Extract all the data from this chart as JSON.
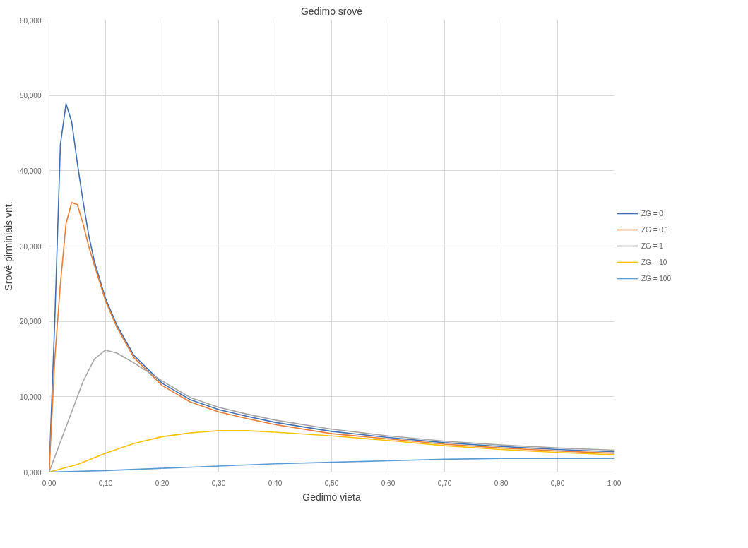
{
  "chart_data": {
    "type": "line",
    "title": "Gedimo srovė",
    "xlabel": "Gedimo vieta",
    "ylabel": "Srovė pirminiais vnt.",
    "xlim": [
      0,
      1
    ],
    "ylim": [
      0,
      60
    ],
    "xticks": [
      {
        "value": 0,
        "label": "0,00"
      },
      {
        "value": 0.1,
        "label": "0,10"
      },
      {
        "value": 0.2,
        "label": "0,20"
      },
      {
        "value": 0.3,
        "label": "0,30"
      },
      {
        "value": 0.4,
        "label": "0,40"
      },
      {
        "value": 0.5,
        "label": "0,50"
      },
      {
        "value": 0.6,
        "label": "0,60"
      },
      {
        "value": 0.7,
        "label": "0,70"
      },
      {
        "value": 0.8,
        "label": "0,80"
      },
      {
        "value": 0.9,
        "label": "0,90"
      },
      {
        "value": 1,
        "label": "1,00"
      }
    ],
    "yticks": [
      {
        "value": 0,
        "label": "0,000"
      },
      {
        "value": 10,
        "label": "10,000"
      },
      {
        "value": 20,
        "label": "20,000"
      },
      {
        "value": 30,
        "label": "30,000"
      },
      {
        "value": 40,
        "label": "40,000"
      },
      {
        "value": 50,
        "label": "50,000"
      },
      {
        "value": 60,
        "label": "60,000"
      }
    ],
    "grid": true,
    "legend": "right",
    "marker": "none",
    "line_style": "solid",
    "series": [
      {
        "name": "ZG = 0",
        "color": "#3f6fb5",
        "x": [
          0,
          0.01,
          0.02,
          0.03,
          0.04,
          0.05,
          0.06,
          0.07,
          0.08,
          0.1,
          0.12,
          0.15,
          0.2,
          0.25,
          0.3,
          0.35,
          0.4,
          0.5,
          0.6,
          0.7,
          0.8,
          0.9,
          1.0
        ],
        "values": [
          0,
          20,
          43.5,
          48.9,
          46.5,
          41,
          36,
          31.5,
          28,
          23,
          19.5,
          15.5,
          11.8,
          9.6,
          8.3,
          7.4,
          6.6,
          5.4,
          4.6,
          3.9,
          3.4,
          3.0,
          2.7
        ]
      },
      {
        "name": "ZG = 0.1",
        "color": "#ed7d31",
        "x": [
          0,
          0.01,
          0.02,
          0.03,
          0.04,
          0.05,
          0.06,
          0.07,
          0.08,
          0.1,
          0.12,
          0.15,
          0.2,
          0.25,
          0.3,
          0.35,
          0.4,
          0.5,
          0.6,
          0.7,
          0.8,
          0.9,
          1.0
        ],
        "values": [
          0,
          15,
          25,
          33,
          35.8,
          35.5,
          33,
          30,
          27.5,
          22.7,
          19.2,
          15.2,
          11.5,
          9.3,
          8.0,
          7.1,
          6.3,
          5.1,
          4.4,
          3.7,
          3.2,
          2.8,
          2.5
        ]
      },
      {
        "name": "ZG = 1",
        "color": "#a5a5a5",
        "x": [
          0,
          0.02,
          0.04,
          0.06,
          0.08,
          0.1,
          0.12,
          0.15,
          0.2,
          0.25,
          0.3,
          0.35,
          0.4,
          0.5,
          0.6,
          0.7,
          0.8,
          0.9,
          1.0
        ],
        "values": [
          0,
          4,
          8,
          12,
          15,
          16.2,
          15.8,
          14.5,
          12.1,
          9.9,
          8.6,
          7.7,
          6.9,
          5.7,
          4.8,
          4.1,
          3.6,
          3.2,
          2.9
        ]
      },
      {
        "name": "ZG = 10",
        "color": "#ffc000",
        "x": [
          0,
          0.05,
          0.1,
          0.15,
          0.2,
          0.25,
          0.3,
          0.35,
          0.4,
          0.5,
          0.6,
          0.7,
          0.8,
          0.9,
          1.0
        ],
        "values": [
          0,
          1,
          2.5,
          3.8,
          4.7,
          5.2,
          5.5,
          5.5,
          5.3,
          4.8,
          4.2,
          3.5,
          3.0,
          2.6,
          2.3
        ]
      },
      {
        "name": "ZG = 100",
        "color": "#5b9bd5",
        "x": [
          0,
          0.1,
          0.2,
          0.3,
          0.4,
          0.5,
          0.6,
          0.7,
          0.8,
          0.9,
          1.0
        ],
        "values": [
          0,
          0.2,
          0.5,
          0.8,
          1.1,
          1.3,
          1.5,
          1.7,
          1.8,
          1.8,
          1.8
        ]
      }
    ]
  }
}
